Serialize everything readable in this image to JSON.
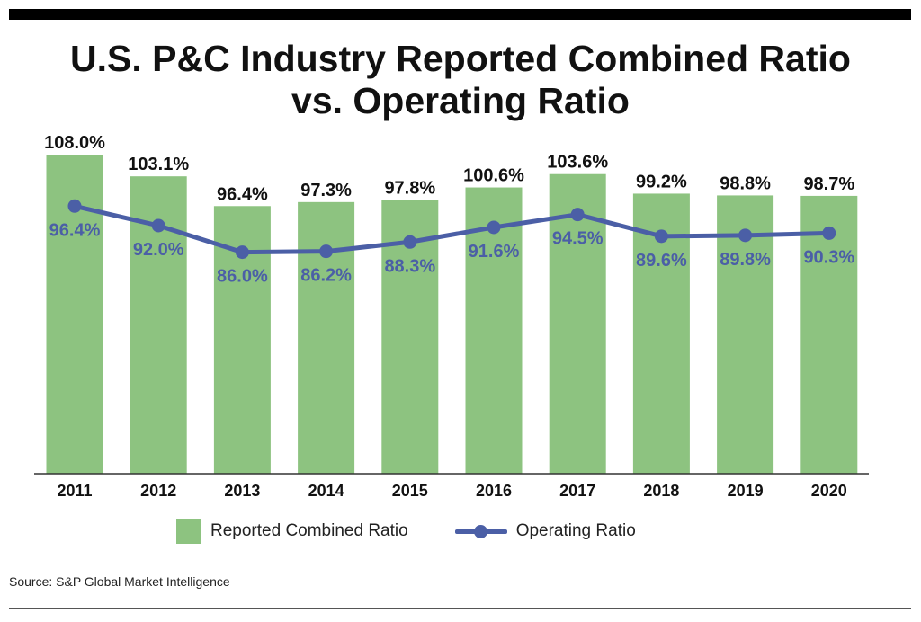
{
  "title_line1": "U.S. P&C Industry Reported Combined Ratio",
  "title_line2": "vs. Operating Ratio",
  "source": "Source: S&P Global Market Intelligence",
  "colors": {
    "bar": "#8dc380",
    "line": "#4b5fa6",
    "text": "#111111"
  },
  "chart_data": {
    "type": "bar",
    "title": "U.S. P&C Industry Reported Combined Ratio vs. Operating Ratio",
    "categories": [
      "2011",
      "2012",
      "2013",
      "2014",
      "2015",
      "2016",
      "2017",
      "2018",
      "2019",
      "2020"
    ],
    "series": [
      {
        "name": "Reported Combined Ratio",
        "type": "bar",
        "values": [
          108.0,
          103.1,
          96.4,
          97.3,
          97.8,
          100.6,
          103.6,
          99.2,
          98.8,
          98.7
        ],
        "labels": [
          "108.0%",
          "103.1%",
          "96.4%",
          "97.3%",
          "97.8%",
          "100.6%",
          "103.6%",
          "99.2%",
          "98.8%",
          "98.7%"
        ]
      },
      {
        "name": "Operating Ratio",
        "type": "line",
        "values": [
          96.4,
          92.0,
          86.0,
          86.2,
          88.3,
          91.6,
          94.5,
          89.6,
          89.8,
          90.3
        ],
        "labels": [
          "96.4%",
          "92.0%",
          "86.0%",
          "86.2%",
          "88.3%",
          "91.6%",
          "94.5%",
          "89.6%",
          "89.8%",
          "90.3%"
        ]
      }
    ],
    "ylim": [
      36.1,
      108.0
    ],
    "xlabel": "",
    "ylabel": "",
    "grid": false,
    "legend": "bottom"
  }
}
